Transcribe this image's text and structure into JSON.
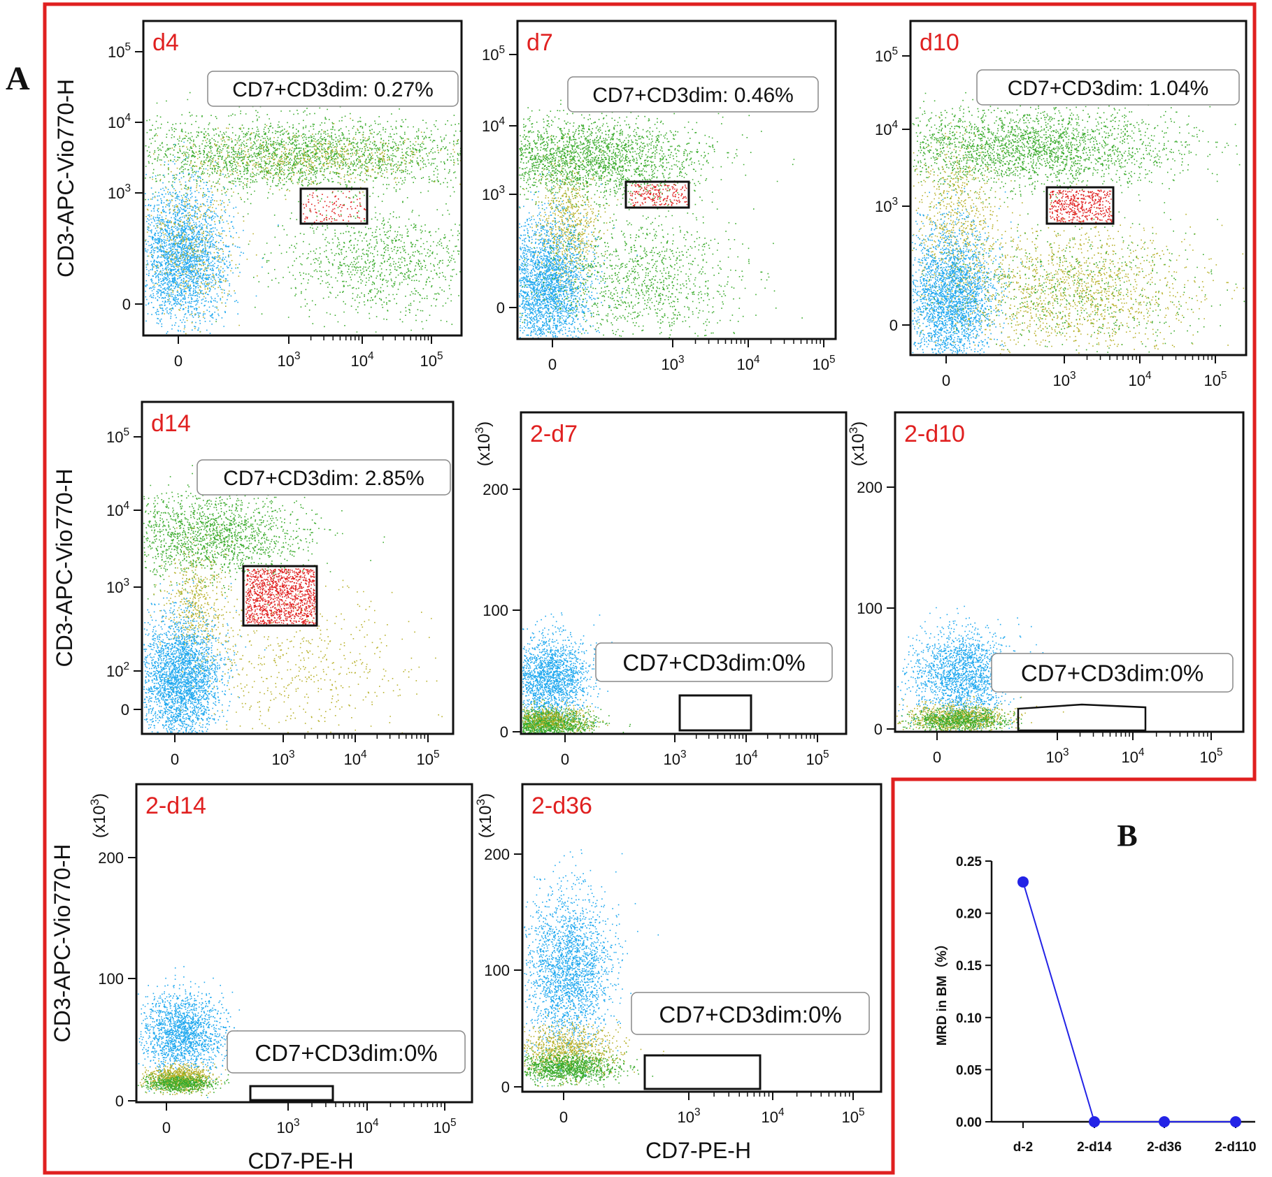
{
  "figure": {
    "panel_a_label": "A",
    "panel_b_label": "B",
    "colors": {
      "frame": "#e02020",
      "title": "#e02020",
      "blue": "#1fa8ef",
      "green": "#3aab2c",
      "yellow": "#b8b12c",
      "red": "#e01e1e",
      "line": "#2323e6"
    }
  },
  "chart_data": [
    {
      "id": "d4",
      "type": "scatter",
      "title": "d4",
      "scale": "log",
      "xlabel": "",
      "ylabel": "CD3-APC-Vio770-H",
      "x_ticks": [
        "0",
        "10^3",
        "10^4",
        "10^5"
      ],
      "y_ticks": [
        "0",
        "10^3",
        "10^4",
        "10^5"
      ],
      "annotation": "CD7+CD3dim: 0.27%",
      "gate_events": 0.27
    },
    {
      "id": "d7",
      "type": "scatter",
      "title": "d7",
      "scale": "log",
      "xlabel": "",
      "ylabel": "",
      "x_ticks": [
        "0",
        "10^3",
        "10^4",
        "10^5"
      ],
      "y_ticks": [
        "0",
        "10^3",
        "10^4",
        "10^5"
      ],
      "annotation": "CD7+CD3dim: 0.46%",
      "gate_events": 0.46
    },
    {
      "id": "d10",
      "type": "scatter",
      "title": "d10",
      "scale": "log",
      "xlabel": "",
      "ylabel": "",
      "x_ticks": [
        "0",
        "10^3",
        "10^4",
        "10^5"
      ],
      "y_ticks": [
        "0",
        "10^3",
        "10^4",
        "10^5"
      ],
      "annotation": "CD7+CD3dim: 1.04%",
      "gate_events": 1.04
    },
    {
      "id": "d14",
      "type": "scatter",
      "title": "d14",
      "scale": "log",
      "xlabel": "",
      "ylabel": "CD3-APC-Vio770-H",
      "x_ticks": [
        "0",
        "10^3",
        "10^4",
        "10^5"
      ],
      "y_ticks": [
        "0",
        "10^2",
        "10^3",
        "10^4",
        "10^5"
      ],
      "annotation": "CD7+CD3dim: 2.85%",
      "gate_events": 2.85
    },
    {
      "id": "2-d7",
      "type": "scatter",
      "title": "2-d7",
      "scale": "linear",
      "xlabel": "",
      "ylabel": "",
      "y_unit": "(x10^3)",
      "x_ticks": [
        "0",
        "10^3",
        "10^4",
        "10^5"
      ],
      "y_ticks": [
        "0",
        "100",
        "200"
      ],
      "annotation": "CD7+CD3dim:0%",
      "gate_events": 0
    },
    {
      "id": "2-d10",
      "type": "scatter",
      "title": "2-d10",
      "scale": "linear",
      "xlabel": "",
      "ylabel": "",
      "y_unit": "(x10^3)",
      "x_ticks": [
        "0",
        "10^3",
        "10^4",
        "10^5"
      ],
      "y_ticks": [
        "0",
        "100",
        "200"
      ],
      "annotation": "CD7+CD3dim:0%",
      "gate_events": 0
    },
    {
      "id": "2-d14",
      "type": "scatter",
      "title": "2-d14",
      "scale": "linear",
      "xlabel": "CD7-PE-H",
      "ylabel": "CD3-APC-Vio770-H",
      "y_unit": "(x10^3)",
      "x_ticks": [
        "0",
        "10^3",
        "10^4",
        "10^5"
      ],
      "y_ticks": [
        "0",
        "100",
        "200"
      ],
      "annotation": "CD7+CD3dim:0%",
      "gate_events": 0
    },
    {
      "id": "2-d36",
      "type": "scatter",
      "title": "2-d36",
      "scale": "linear",
      "xlabel": "CD7-PE-H",
      "ylabel": "",
      "y_unit": "(x10^3)",
      "x_ticks": [
        "0",
        "10^3",
        "10^4",
        "10^5"
      ],
      "y_ticks": [
        "0",
        "100",
        "200"
      ],
      "annotation": "CD7+CD3dim:0%",
      "gate_events": 0
    },
    {
      "id": "B",
      "type": "line",
      "title": "",
      "xlabel": "",
      "ylabel": "MRD in BM（%）",
      "categories": [
        "d-2",
        "2-d14",
        "2-d36",
        "2-d110"
      ],
      "values": [
        0.23,
        0.0,
        0.0,
        0.0
      ],
      "ylim": [
        0,
        0.25
      ],
      "y_ticks": [
        "0.00",
        "0.05",
        "0.10",
        "0.15",
        "0.20",
        "0.25"
      ]
    }
  ]
}
